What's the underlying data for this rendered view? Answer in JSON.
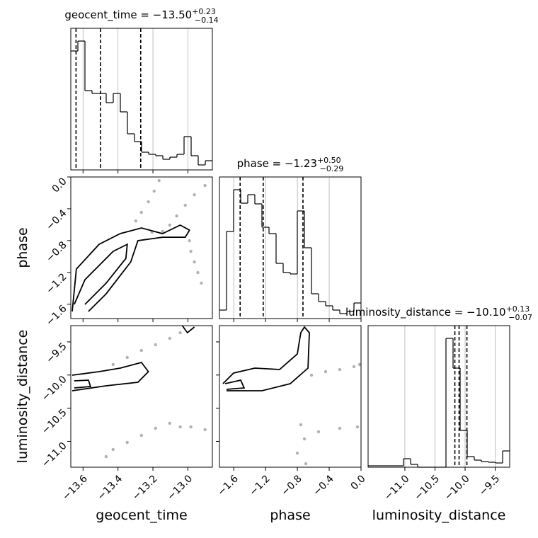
{
  "chart_data": [
    {
      "type": "histogram",
      "title": "geocent_time = −13.50",
      "title_sup": "+0.23",
      "title_sub": "−0.14",
      "bins": [
        -13.67,
        -13.6295,
        -13.589,
        -13.5485,
        -13.508,
        -13.4675,
        -13.427,
        -13.3865,
        -13.346,
        -13.3055,
        -13.265,
        -13.2245,
        -13.184,
        -13.1435,
        -13.103,
        -13.0625,
        -13.022,
        -12.9815,
        -12.941,
        -12.9005,
        -12.86
      ],
      "values": [
        168,
        182,
        112,
        108,
        108,
        95,
        108,
        82,
        51,
        40,
        25,
        22,
        20,
        15,
        18,
        22,
        47,
        20,
        7,
        13
      ],
      "quantiles": [
        -13.64,
        -13.5,
        -13.27
      ],
      "xlim": [
        -13.67,
        -12.86
      ],
      "ylim": [
        0,
        200
      ],
      "grid": true,
      "color": "#000000"
    },
    {
      "type": "corner2d",
      "ylabel": "phase",
      "xlim": [
        -13.67,
        -12.86
      ],
      "ylim": [
        -1.78,
        0
      ],
      "yticks": [
        {
          "value": 0,
          "label": "0.0"
        },
        {
          "value": -0.4,
          "label": "−0.4"
        },
        {
          "value": -0.8,
          "label": "−0.8"
        },
        {
          "value": -1.2,
          "label": "−1.2"
        },
        {
          "value": -1.6,
          "label": "−1.6"
        }
      ],
      "points": {
        "x": [
          -13.165,
          -13.193,
          -13.226,
          -13.266,
          -13.298,
          -12.902,
          -12.963,
          -13.015,
          -13.064,
          -13.104,
          -12.991,
          -12.983,
          -12.963,
          -12.943,
          -12.923,
          -13.145,
          -13.205
        ],
        "y": [
          -0.045,
          -0.178,
          -0.312,
          -0.445,
          -0.552,
          -0.107,
          -0.223,
          -0.356,
          -0.49,
          -0.605,
          -0.801,
          -0.935,
          -1.068,
          -1.202,
          -1.335,
          -0.685,
          -0.694
        ]
      },
      "contours": [
        {
          "x": [
            -13.662,
            -13.638,
            -13.508,
            -13.387,
            -13.266,
            -13.145,
            -13.044,
            -12.991,
            -13.015,
            -13.145,
            -13.286,
            -13.327,
            -13.468,
            -13.569
          ],
          "y": [
            -1.691,
            -1.157,
            -0.846,
            -0.712,
            -0.641,
            -0.712,
            -0.605,
            -0.668,
            -0.757,
            -0.757,
            -0.801,
            -1.068,
            -1.469,
            -1.691
          ]
        },
        {
          "x": [
            -13.65,
            -13.589,
            -13.428,
            -13.347,
            -13.355,
            -13.468,
            -13.589
          ],
          "y": [
            -1.602,
            -1.291,
            -0.935,
            -0.846,
            -1.024,
            -1.335,
            -1.602
          ]
        }
      ]
    },
    {
      "type": "histogram",
      "title": "phase = −1.23",
      "title_sup": "+0.50",
      "title_sub": "−0.29",
      "bins": [
        -1.78,
        -1.691,
        -1.602,
        -1.513,
        -1.424,
        -1.335,
        -1.246,
        -1.157,
        -1.068,
        -0.979,
        -0.89,
        -0.801,
        -0.712,
        -0.623,
        -0.534,
        -0.445,
        -0.356,
        -0.267,
        -0.178,
        -0.089,
        0.0
      ],
      "values": [
        12,
        123,
        182,
        163,
        175,
        162,
        129,
        120,
        78,
        65,
        63,
        152,
        100,
        35,
        24,
        18,
        12,
        7,
        10,
        22
      ],
      "quantiles": [
        -1.52,
        -1.23,
        -0.73
      ],
      "xlim": [
        -1.78,
        0
      ],
      "ylim": [
        0,
        200
      ],
      "grid": true,
      "color": "#000000"
    },
    {
      "type": "corner2d",
      "xlabel": "geocent_time",
      "ylabel": "luminosity_distance",
      "xlim": [
        -13.67,
        -12.86
      ],
      "ylim": [
        -11.39,
        -9.255
      ],
      "xticks": [
        {
          "value": -13.6,
          "label": "−13.6"
        },
        {
          "value": -13.4,
          "label": "−13.4"
        },
        {
          "value": -13.2,
          "label": "−13.2"
        },
        {
          "value": -13.0,
          "label": "−13.0"
        }
      ],
      "yticks": [
        {
          "value": -9.5,
          "label": "−9.5"
        },
        {
          "value": -10.0,
          "label": "−10.0"
        },
        {
          "value": -10.5,
          "label": "−10.5"
        },
        {
          "value": -11.0,
          "label": "−11.0"
        }
      ],
      "points": {
        "x": [
          -13.428,
          -13.347,
          -13.266,
          -13.185,
          -13.104,
          -13.044,
          -13.468,
          -13.428,
          -13.347,
          -13.266,
          -13.185,
          -13.104,
          -13.044,
          -12.983,
          -12.902
        ],
        "y": [
          -9.842,
          -9.735,
          -9.629,
          -9.543,
          -9.447,
          -9.362,
          -11.23,
          -11.123,
          -11.016,
          -10.91,
          -10.803,
          -10.728,
          -10.782,
          -10.782,
          -10.824
        ]
      },
      "contours": [
        {
          "x": [
            -13.662,
            -13.508,
            -13.387,
            -13.266,
            -13.226,
            -13.286,
            -13.468,
            -13.662
          ],
          "y": [
            -10.002,
            -9.949,
            -9.896,
            -9.81,
            -9.949,
            -10.109,
            -10.162,
            -10.237
          ]
        },
        {
          "x": [
            -13.65,
            -13.569,
            -13.557,
            -13.65
          ],
          "y": [
            -10.088,
            -10.077,
            -10.173,
            -10.194
          ]
        },
        {
          "x": [
            -13.032,
            -13.003,
            -12.963
          ],
          "y": [
            -9.255,
            -9.362,
            -9.276
          ]
        }
      ]
    },
    {
      "type": "corner2d",
      "xlabel": "phase",
      "xlim": [
        -1.78,
        0
      ],
      "ylim": [
        -11.39,
        -9.255
      ],
      "xticks": [
        {
          "value": -1.6,
          "label": "−1.6"
        },
        {
          "value": -1.2,
          "label": "−1.2"
        },
        {
          "value": -0.8,
          "label": "−0.8"
        },
        {
          "value": -0.4,
          "label": "−0.4"
        },
        {
          "value": 0,
          "label": "0.0"
        }
      ],
      "points": {
        "x": [
          -0.623,
          -0.445,
          -0.267,
          -0.089,
          -0.018,
          -0.757,
          -0.712,
          -0.801,
          -0.694,
          -0.534,
          -0.267,
          -0.045
        ],
        "y": [
          -10.002,
          -9.949,
          -9.917,
          -9.874,
          -9.842,
          -10.75,
          -10.963,
          -11.177,
          -11.337,
          -10.856,
          -10.803,
          -10.782
        ]
      },
      "contours": [
        {
          "x": [
            -1.736,
            -1.602,
            -1.335,
            -1.024,
            -0.801,
            -0.757,
            -0.712,
            -0.65,
            -0.667,
            -0.89,
            -1.246,
            -1.691
          ],
          "y": [
            -10.13,
            -9.97,
            -9.896,
            -9.917,
            -9.682,
            -9.362,
            -9.276,
            -9.362,
            -9.896,
            -10.13,
            -10.237,
            -10.237
          ]
        },
        {
          "x": [
            -1.709,
            -1.513,
            -1.469,
            -1.691
          ],
          "y": [
            -10.13,
            -10.077,
            -10.194,
            -10.216
          ]
        }
      ]
    },
    {
      "type": "histogram",
      "title": "luminosity_distance = −10.10",
      "title_sup": "+0.13",
      "title_sub": "−0.07",
      "xlabel": "luminosity_distance",
      "bins": [
        -11.61,
        -11.4925,
        -11.375,
        -11.2575,
        -11.14,
        -11.0225,
        -10.905,
        -10.7875,
        -10.67,
        -10.5525,
        -10.435,
        -10.3175,
        -10.2,
        -10.0825,
        -9.965,
        -9.8475,
        -9.73,
        -9.6125,
        -9.495,
        -9.3775,
        -9.26
      ],
      "values": [
        2,
        2,
        2,
        2,
        2,
        12,
        4,
        0,
        0,
        0,
        0,
        182,
        140,
        52,
        15,
        10,
        8,
        7,
        6,
        23
      ],
      "quantiles": [
        -10.17,
        -10.1,
        -9.97
      ],
      "xlim": [
        -11.61,
        -9.26
      ],
      "ylim": [
        0,
        200
      ],
      "grid": true,
      "color": "#000000",
      "xticks": [
        {
          "value": -11.0,
          "label": "−11.0"
        },
        {
          "value": -10.5,
          "label": "−10.5"
        },
        {
          "value": -10.0,
          "label": "−10.0"
        },
        {
          "value": -9.5,
          "label": "−9.5"
        }
      ]
    }
  ]
}
